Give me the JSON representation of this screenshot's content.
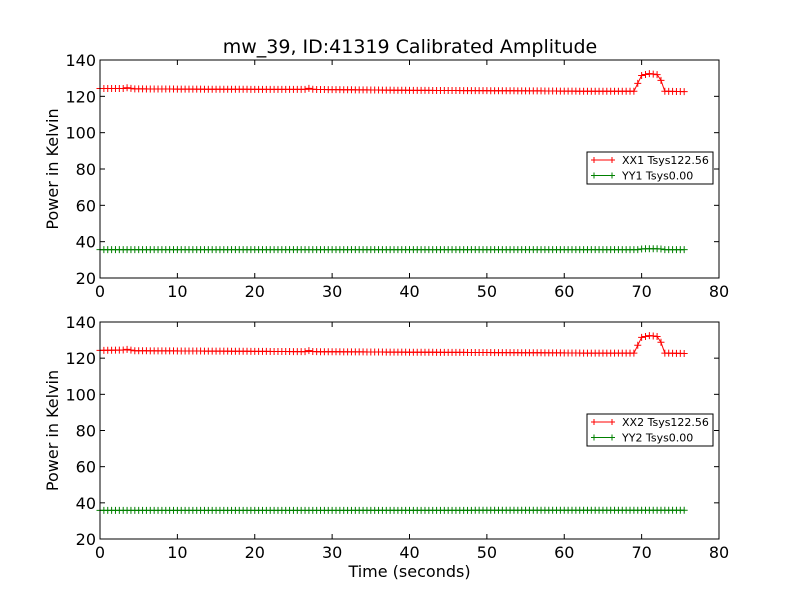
{
  "chart_data": [
    {
      "type": "line",
      "title": "mw_39, ID:41319 Calibrated Amplitude",
      "xlabel": "",
      "ylabel": "Power in Kelvin",
      "xlim": [
        0,
        80
      ],
      "ylim": [
        20,
        140
      ],
      "xticks": [
        0,
        10,
        20,
        30,
        40,
        50,
        60,
        70,
        80
      ],
      "yticks": [
        20,
        40,
        60,
        80,
        100,
        120,
        140
      ],
      "grid": false,
      "legend_position": "right",
      "series": [
        {
          "name": "XX1 Tsys122.56",
          "color": "#ff0000",
          "marker": "plus",
          "segments": [
            [
              0,
              124.3
            ],
            [
              3,
              124.3
            ],
            [
              3.6,
              124.8
            ],
            [
              4.3,
              124.1
            ],
            [
              15,
              123.9
            ],
            [
              26.5,
              123.8
            ],
            [
              27,
              124.4
            ],
            [
              27.6,
              123.8
            ],
            [
              40,
              123.3
            ],
            [
              56,
              123
            ],
            [
              63,
              122.8
            ],
            [
              69,
              122.8
            ],
            [
              70,
              131.5
            ],
            [
              71,
              132.5
            ],
            [
              72.3,
              131.8
            ],
            [
              72.9,
              122.8
            ],
            [
              75.5,
              122.6
            ]
          ]
        },
        {
          "name": "YY1 Tsys0.00",
          "color": "#008000",
          "marker": "plus",
          "segments": [
            [
              0,
              35.6
            ],
            [
              69.5,
              35.6
            ],
            [
              70.2,
              36.1
            ],
            [
              72.3,
              36.1
            ],
            [
              72.9,
              35.6
            ],
            [
              75.5,
              35.6
            ]
          ]
        }
      ]
    },
    {
      "type": "line",
      "title": "",
      "xlabel": "Time (seconds)",
      "ylabel": "Power in Kelvin",
      "xlim": [
        0,
        80
      ],
      "ylim": [
        20,
        140
      ],
      "xticks": [
        0,
        10,
        20,
        30,
        40,
        50,
        60,
        70,
        80
      ],
      "yticks": [
        20,
        40,
        60,
        80,
        100,
        120,
        140
      ],
      "grid": false,
      "legend_position": "right",
      "series": [
        {
          "name": "XX2 Tsys122.56",
          "color": "#ff0000",
          "marker": "plus",
          "segments": [
            [
              0,
              124.3
            ],
            [
              3,
              124.5
            ],
            [
              3.6,
              124.9
            ],
            [
              4.3,
              124.1
            ],
            [
              15,
              123.9
            ],
            [
              26.5,
              123.6
            ],
            [
              27,
              124.2
            ],
            [
              27.6,
              123.6
            ],
            [
              40,
              123.3
            ],
            [
              56,
              123
            ],
            [
              63,
              122.8
            ],
            [
              69,
              122.8
            ],
            [
              70,
              131.5
            ],
            [
              71,
              132.5
            ],
            [
              72.3,
              131.8
            ],
            [
              72.9,
              122.8
            ],
            [
              75.5,
              122.6
            ]
          ]
        },
        {
          "name": "YY2 Tsys0.00",
          "color": "#008000",
          "marker": "plus",
          "segments": [
            [
              0,
              35.8
            ],
            [
              75.5,
              35.9
            ]
          ]
        }
      ]
    }
  ]
}
